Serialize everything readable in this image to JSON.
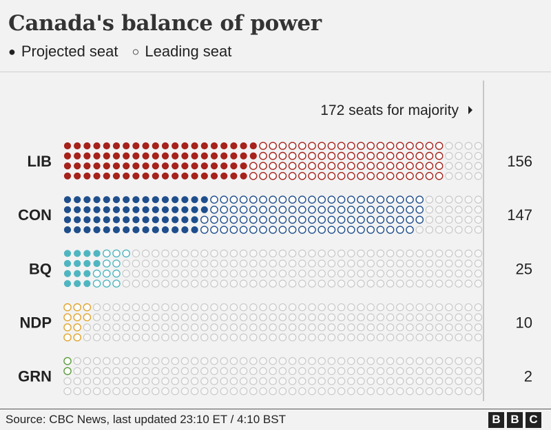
{
  "title": "Canada's balance of power",
  "legend": {
    "projected": "Projected seat",
    "leading": "Leading seat"
  },
  "source": "Source: CBC News,  last updated 23:10 ET / 4:10 BST",
  "logo": [
    "B",
    "B",
    "C"
  ],
  "chart_data": {
    "type": "waffle",
    "title": "Canada's balance of power",
    "total_seats_per_party_row": 172,
    "majority_label": "172 seats for majority",
    "majority_threshold": 172,
    "series": [
      {
        "label": "LIB",
        "total": 156,
        "projected": 78,
        "leading": 78,
        "color": "#a6221b"
      },
      {
        "label": "CON",
        "total": 147,
        "projected": 58,
        "leading": 89,
        "color": "#1f4e8c"
      },
      {
        "label": "BQ",
        "total": 25,
        "projected": 14,
        "leading": 11,
        "color": "#4fb6c1"
      },
      {
        "label": "NDP",
        "total": 10,
        "projected": 0,
        "leading": 10,
        "color": "#e0a52e"
      },
      {
        "label": "GRN",
        "total": 2,
        "projected": 0,
        "leading": 2,
        "color": "#5a9a3a"
      }
    ]
  }
}
